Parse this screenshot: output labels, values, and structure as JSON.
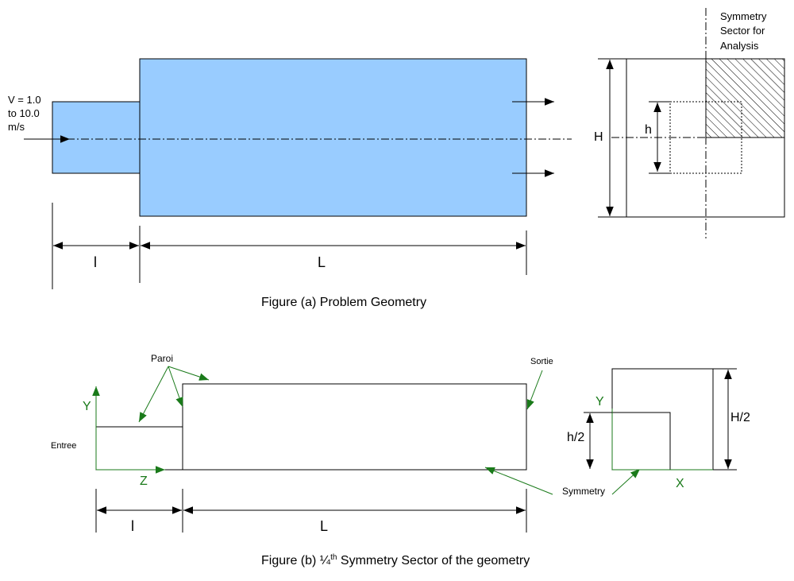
{
  "figure_a": {
    "caption": "Figure (a) Problem Geometry",
    "velocity_label": [
      "V =  1.0",
      "to 10.0",
      "m/s"
    ],
    "dim_l": "l",
    "dim_L": "L",
    "dim_H": "H",
    "dim_h": "h",
    "sector_label": [
      "Symmetry",
      "Sector for",
      "Analysis"
    ],
    "fill_color": "#99ccff"
  },
  "figure_b": {
    "caption_pre": "Figure (b) ¼",
    "caption_sup": "th",
    "caption_post": " Symmetry Sector of the geometry",
    "wall_label": "Paroi",
    "outlet_label": "Sortie",
    "inlet_label": "Entree",
    "symmetry_label": "Symmetry",
    "axis_y": "Y",
    "axis_z": "Z",
    "axis_x": "X",
    "dim_l": "l",
    "dim_L": "L",
    "dim_h2": "h/2",
    "dim_H2": "H/2",
    "axis_color": "#1a7a1a"
  }
}
